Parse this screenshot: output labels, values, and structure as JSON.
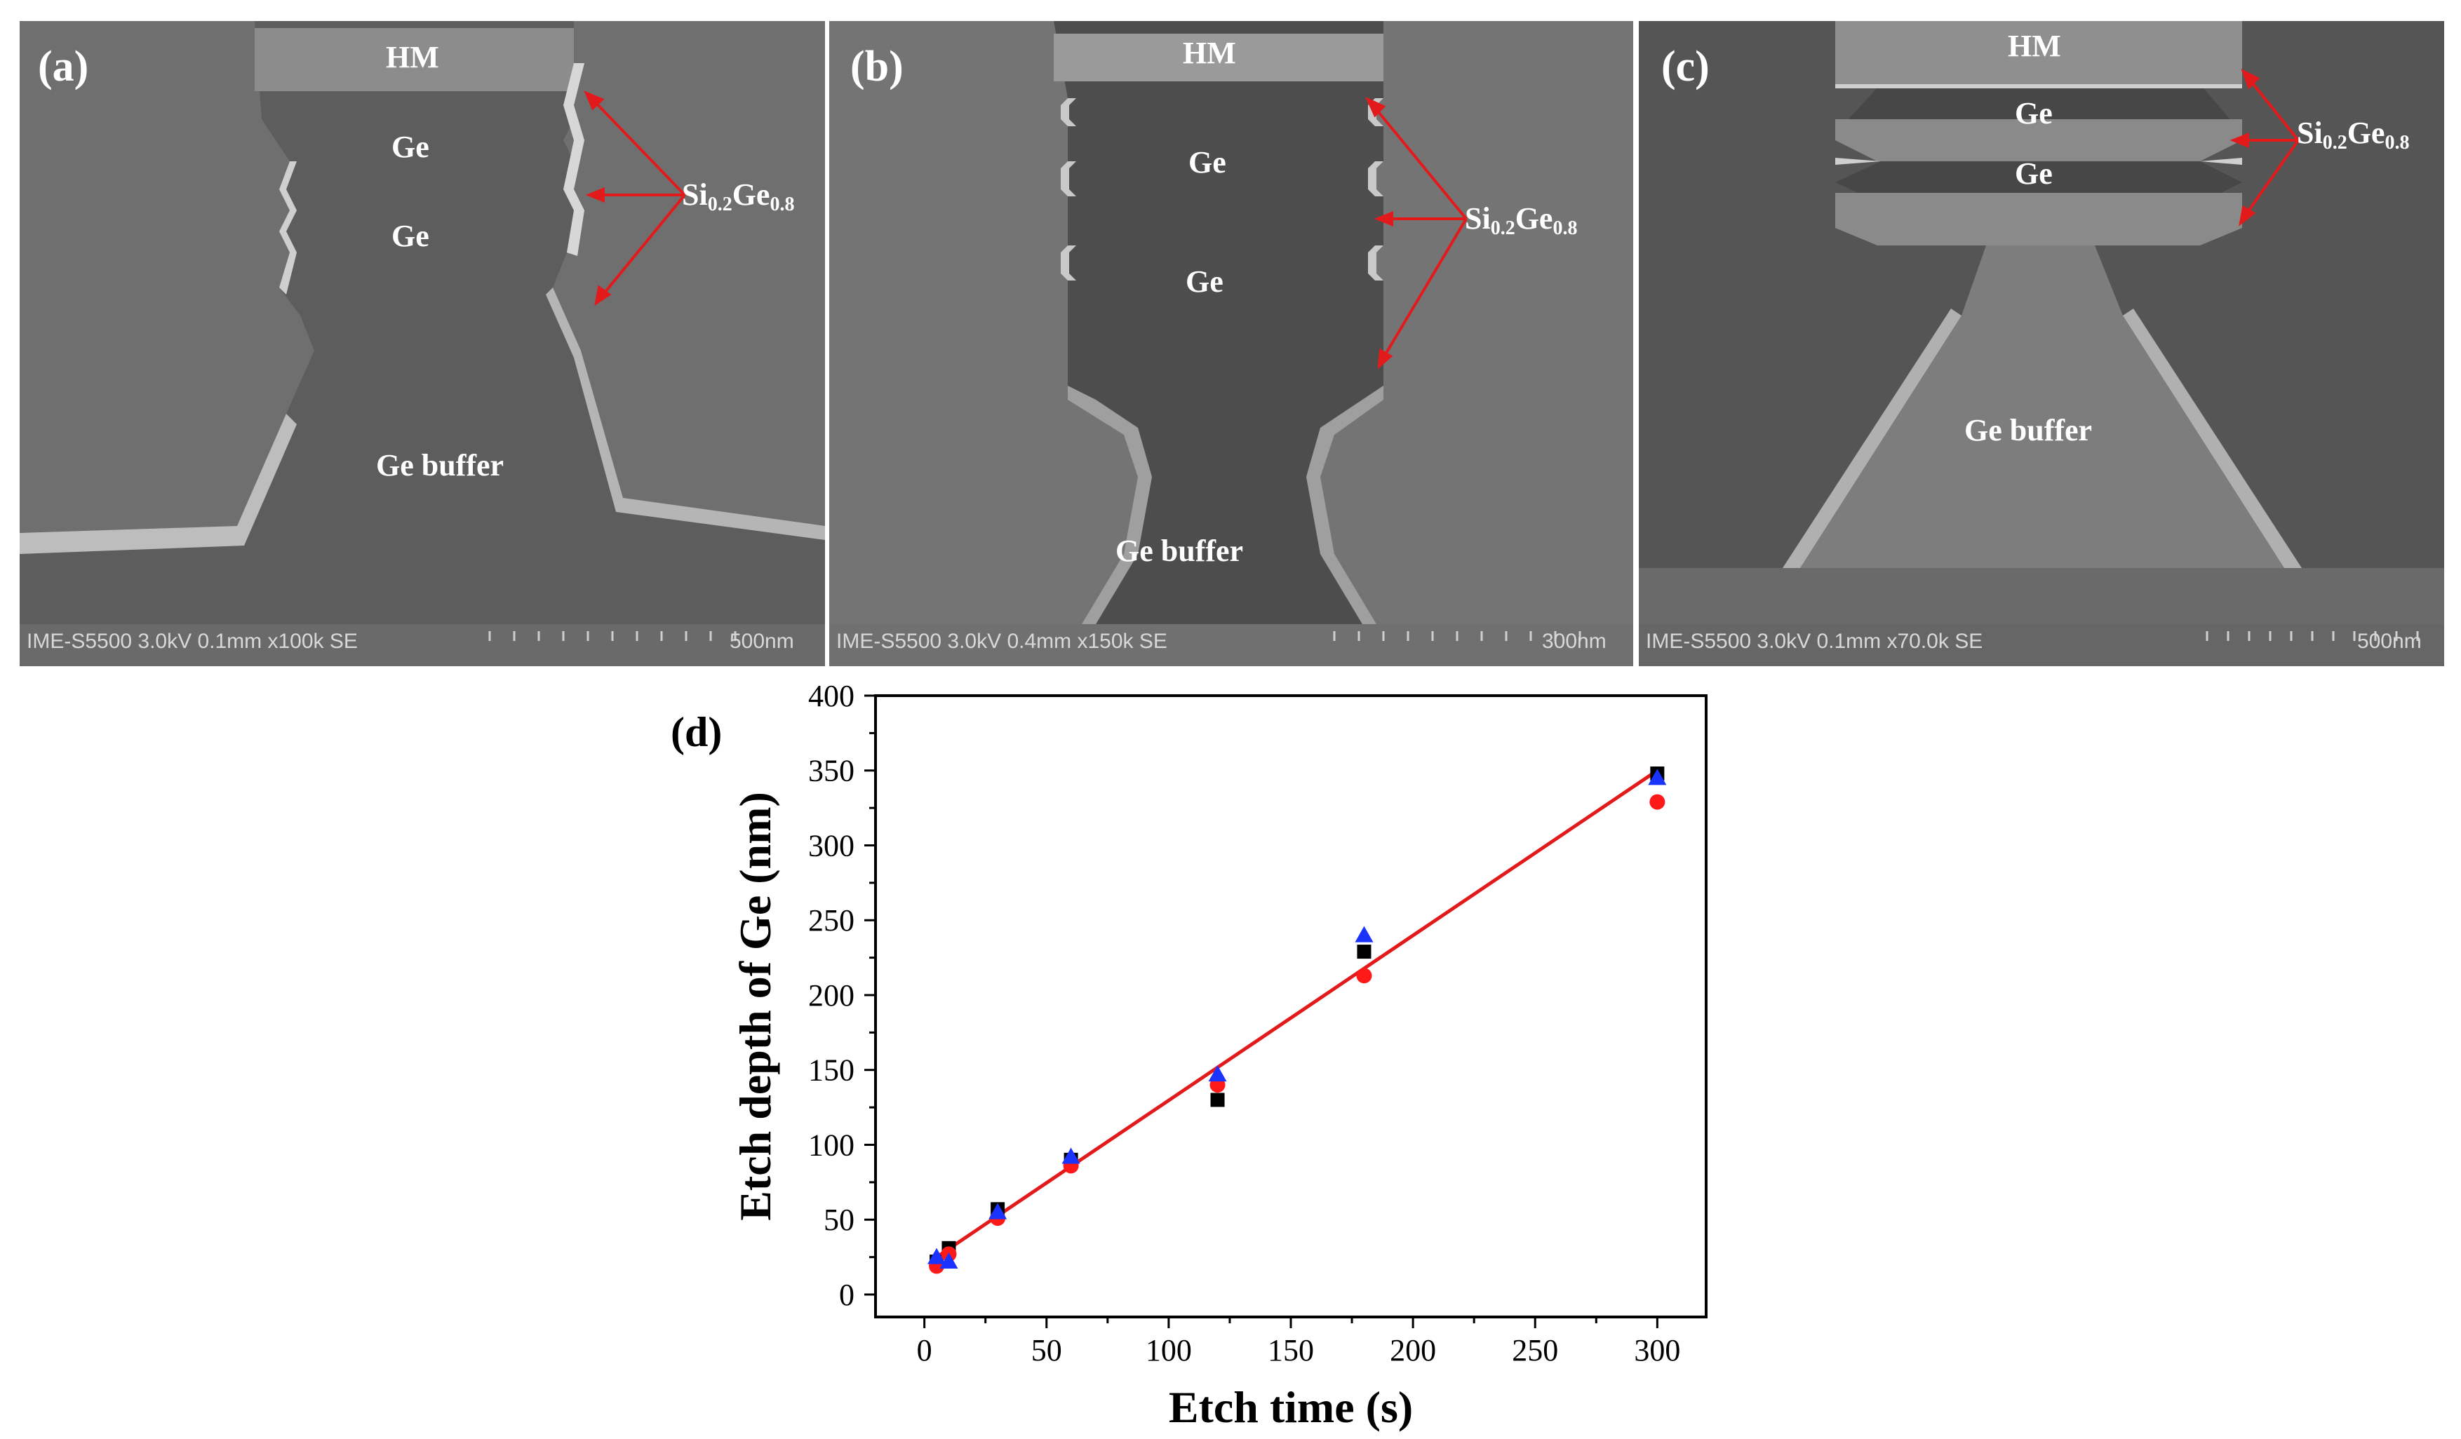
{
  "panels": [
    {
      "letter": "(a)",
      "labels": {
        "hm": "HM",
        "ge_top": "Ge",
        "ge_bottom": "Ge",
        "buffer": "Ge buffer"
      },
      "annotation": {
        "si": "Si",
        "si_sub": "0.2",
        "ge": "Ge",
        "ge_sub": "0.8"
      },
      "footer_info": "IME-S5500 3.0kV 0.1mm x100k SE",
      "scale_label": "500nm"
    },
    {
      "letter": "(b)",
      "labels": {
        "hm": "HM",
        "ge_top": "Ge",
        "ge_bottom": "Ge",
        "buffer": "Ge buffer"
      },
      "annotation": {
        "si": "Si",
        "si_sub": "0.2",
        "ge": "Ge",
        "ge_sub": "0.8"
      },
      "footer_info": "IME-S5500 3.0kV 0.4mm x150k SE",
      "scale_label": "300nm"
    },
    {
      "letter": "(c)",
      "labels": {
        "hm": "HM",
        "ge_top": "Ge",
        "ge_bottom": "Ge",
        "buffer": "Ge buffer"
      },
      "annotation": {
        "si": "Si",
        "si_sub": "0.2",
        "ge": "Ge",
        "ge_sub": "0.8"
      },
      "footer_info": "IME-S5500 3.0kV 0.1mm x70.0k SE",
      "scale_label": "500nm"
    }
  ],
  "colors": {
    "arrow": "#e31a1c",
    "fit_line": "#e31a1c",
    "series_square": "#000000",
    "series_circle": "#ff1a1a",
    "series_triangle": "#1a33ff"
  },
  "chart_data": {
    "type": "scatter",
    "panel_letter": "(d)",
    "xlabel": "Etch time (s)",
    "ylabel": "Etch depth of Ge (nm)",
    "xlim": [
      -20,
      320
    ],
    "ylim": [
      -15,
      400
    ],
    "xticks": [
      0,
      50,
      100,
      150,
      200,
      250,
      300
    ],
    "yticks": [
      0,
      50,
      100,
      150,
      200,
      250,
      300,
      350,
      400
    ],
    "grid": false,
    "legend": "none",
    "series": [
      {
        "marker": "square",
        "x": [
          5,
          10,
          30,
          60,
          120,
          180,
          300
        ],
        "y": [
          22,
          31,
          57,
          90,
          130,
          229,
          348
        ]
      },
      {
        "marker": "circle",
        "x": [
          5,
          10,
          30,
          60,
          120,
          180,
          300
        ],
        "y": [
          19,
          27,
          51,
          86,
          140,
          213,
          329
        ]
      },
      {
        "marker": "triangle",
        "x": [
          5,
          10,
          30,
          60,
          120,
          180,
          300
        ],
        "y": [
          25,
          22,
          55,
          92,
          147,
          240,
          345
        ]
      }
    ],
    "fit_line": {
      "x": [
        5,
        300
      ],
      "y": [
        25,
        350
      ]
    }
  }
}
